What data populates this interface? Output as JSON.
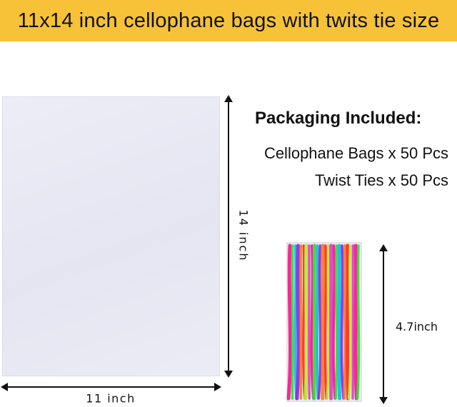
{
  "banner": {
    "title": "11x14 inch cellophane bags with twits tie size"
  },
  "dimensions": {
    "bag_height_label": "14 inch",
    "bag_width_label": "11 inch",
    "tie_length_label": "4.7inch"
  },
  "packaging": {
    "heading": "Packaging Included:",
    "items": [
      "Cellophane Bags x 50 Pcs",
      "Twist Ties x 50 Pcs"
    ]
  },
  "colors": {
    "banner": "#f7c238",
    "bag": "#e4e5f1",
    "ties": [
      "#f01a8c",
      "#2de22a",
      "#19b6e8",
      "#8a2be2",
      "#ff7a1a",
      "#ff2a2a",
      "#b4f02a",
      "#e43cc8"
    ]
  }
}
